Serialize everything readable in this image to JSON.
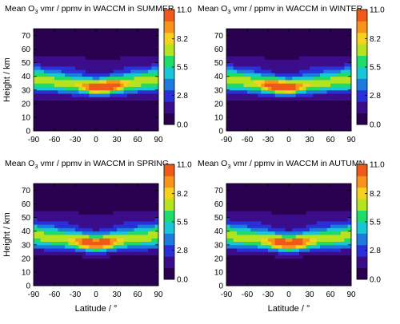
{
  "figure": {
    "xlabel": "Latitude / °",
    "ylabel": "Height / km"
  },
  "colormap": [
    "#2a0050",
    "#3a0d8a",
    "#2a2fd8",
    "#1f7ae0",
    "#18c6d8",
    "#1edc6a",
    "#b6e320",
    "#f7d21c",
    "#f79419",
    "#f05a18"
  ],
  "chart_data": [
    {
      "type": "heatmap",
      "title": "Mean O3 vmr / ppmv in WACCM in SUMMER",
      "title_parts": [
        "Mean O",
        "3",
        " vmr / ppmv in WACCM in SUMMER"
      ],
      "season": "SUMMER",
      "x_range": [
        -90,
        90
      ],
      "y_range": [
        0,
        75
      ],
      "xticks": [
        "-90",
        "-60",
        "-30",
        "0",
        "30",
        "60",
        "90"
      ],
      "yticks": [
        "0",
        "10",
        "20",
        "30",
        "40",
        "50",
        "60",
        "70"
      ],
      "show_xlabel": false,
      "show_ylabel": true,
      "colorbar": {
        "range": [
          0.0,
          11.0
        ],
        "ticks": [
          "0.0",
          "2.8",
          "5.5",
          "8.2",
          "11.0"
        ]
      },
      "peak": {
        "lat": 10,
        "height": 32,
        "vmr": 10.2
      }
    },
    {
      "type": "heatmap",
      "title": "Mean O3 vmr / ppmv in WACCM in WINTER",
      "title_parts": [
        "Mean O",
        "3",
        " vmr / ppmv in WACCM in WINTER"
      ],
      "season": "WINTER",
      "x_range": [
        -90,
        90
      ],
      "y_range": [
        0,
        75
      ],
      "xticks": [
        "-90",
        "-60",
        "-30",
        "0",
        "30",
        "60",
        "90"
      ],
      "yticks": [
        "0",
        "10",
        "20",
        "30",
        "40",
        "50",
        "60",
        "70"
      ],
      "show_xlabel": false,
      "show_ylabel": false,
      "colorbar": {
        "range": [
          0.0,
          11.0
        ],
        "ticks": [
          "0.0",
          "2.8",
          "5.5",
          "8.2",
          "11.0"
        ]
      },
      "peak": {
        "lat": -10,
        "height": 32,
        "vmr": 10.2
      }
    },
    {
      "type": "heatmap",
      "title": "Mean O3 vmr / ppmv in WACCM in SPRING",
      "title_parts": [
        "Mean O",
        "3",
        " vmr / ppmv in WACCM in SPRING"
      ],
      "season": "SPRING",
      "x_range": [
        -90,
        90
      ],
      "y_range": [
        0,
        75
      ],
      "xticks": [
        "-90",
        "-60",
        "-30",
        "0",
        "30",
        "60",
        "90"
      ],
      "yticks": [
        "0",
        "10",
        "20",
        "30",
        "40",
        "50",
        "60",
        "70"
      ],
      "show_xlabel": true,
      "show_ylabel": true,
      "colorbar": {
        "range": [
          0.0,
          11.0
        ],
        "ticks": [
          "0.0",
          "2.8",
          "5.5",
          "8.2",
          "11.0"
        ]
      },
      "peak": {
        "lat": 0,
        "height": 31,
        "vmr": 10.3
      }
    },
    {
      "type": "heatmap",
      "title": "Mean O3 vmr / ppmv in WACCM in AUTUMN",
      "title_parts": [
        "Mean O",
        "3",
        " vmr / ppmv in WACCM in AUTUMN"
      ],
      "season": "AUTUMN",
      "x_range": [
        -90,
        90
      ],
      "y_range": [
        0,
        75
      ],
      "xticks": [
        "-90",
        "-60",
        "-30",
        "0",
        "30",
        "60",
        "90"
      ],
      "yticks": [
        "0",
        "10",
        "20",
        "30",
        "40",
        "50",
        "60",
        "70"
      ],
      "show_xlabel": true,
      "show_ylabel": false,
      "colorbar": {
        "range": [
          0.0,
          11.0
        ],
        "ticks": [
          "0.0",
          "2.8",
          "5.5",
          "8.2",
          "11.0"
        ]
      },
      "peak": {
        "lat": 0,
        "height": 31,
        "vmr": 10.3
      }
    }
  ]
}
